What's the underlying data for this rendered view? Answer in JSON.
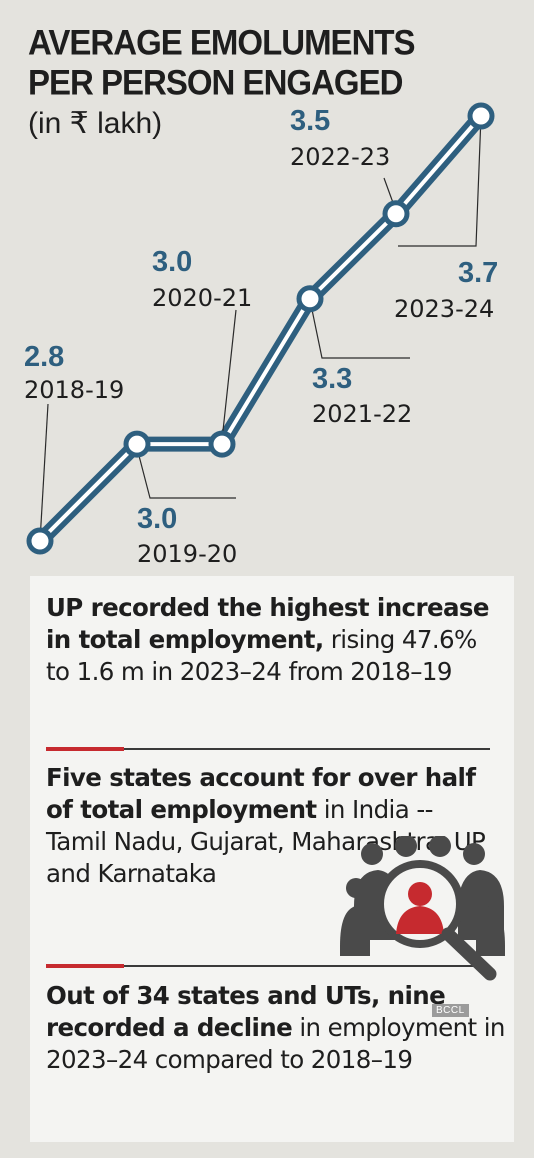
{
  "header": {
    "title_line1": "AVERAGE EMOLUMENTS",
    "title_line2": "PER PERSON ENGAGED",
    "subtitle": "(in ₹ lakh)"
  },
  "chart_data": {
    "type": "line",
    "title": "AVERAGE EMOLUMENTS PER PERSON ENGAGED",
    "subtitle": "(in ₹ lakh)",
    "categories": [
      "2018-19",
      "2019-20",
      "2020-21",
      "2021-22",
      "2022-23",
      "2023-24"
    ],
    "values": [
      2.8,
      3.0,
      3.0,
      3.3,
      3.5,
      3.7
    ],
    "value_labels": [
      "2.8",
      "3.0",
      "3.0",
      "3.3",
      "3.5",
      "3.7"
    ],
    "ylim": [
      2.8,
      3.7
    ],
    "grid": false,
    "legend": "none",
    "colors": {
      "line": "#2e5f7f",
      "line_highlight": "#ffffff",
      "value_text": "#2e5f7f",
      "label_text": "#1e1e1e"
    }
  },
  "facts": [
    {
      "bold": "UP recorded the highest increase in total employment,",
      "normal": " rising 47.6% to 1.6 m in 2023–24 from 2018–19"
    },
    {
      "bold": "Five states account for over half of total employment",
      "normal": " in India -- Tamil Nadu, Gujarat, Maharashtra, UP and Karnataka"
    },
    {
      "bold": "Out of 34 states and UTs, nine recorded a decline",
      "normal": " in employment in 2023–24 compared to 2018–19"
    }
  ],
  "brand": "BCCL",
  "icons": {
    "illustration": "people-magnifier-icon"
  },
  "colors": {
    "accent_red": "#c62a2f",
    "icon_gray": "#4a4a4a"
  }
}
